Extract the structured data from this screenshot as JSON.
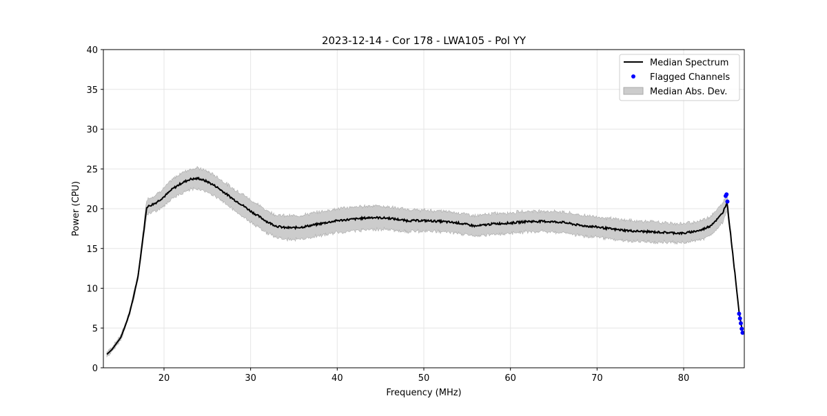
{
  "chart_data": {
    "type": "line",
    "title": "2023-12-14 - Cor 178 - LWA105 - Pol YY",
    "xlabel": "Frequency (MHz)",
    "ylabel": "Power (CPU)",
    "xlim": [
      13,
      87
    ],
    "ylim": [
      0,
      40
    ],
    "xticks": [
      20,
      30,
      40,
      50,
      60,
      70,
      80
    ],
    "yticks": [
      0,
      5,
      10,
      15,
      20,
      25,
      30,
      35,
      40
    ],
    "grid": true,
    "legend_position": "top-right",
    "legend": [
      "Median Spectrum",
      "Flagged Channels",
      "Median Abs. Dev."
    ],
    "colors": {
      "median": "#000000",
      "flagged": "#0000ff",
      "mad": "#cccccc",
      "mad_edge": "#aaaaaa"
    },
    "median_spectrum": {
      "x": [
        13.4,
        14,
        15,
        15.5,
        16,
        16.5,
        17,
        17.3,
        17.7,
        18,
        19,
        20,
        21,
        22,
        23,
        24,
        25,
        26,
        27,
        28,
        29,
        30,
        31,
        32,
        33,
        34,
        35,
        36,
        37,
        38,
        39,
        40,
        42,
        44,
        46,
        48,
        50,
        52,
        54,
        56,
        58,
        60,
        62,
        64,
        66,
        68,
        70,
        72,
        74,
        76,
        78,
        80,
        82,
        83,
        84,
        84.5,
        85,
        85.5,
        86,
        86.4,
        86.8
      ],
      "y": [
        1.7,
        2.3,
        3.8,
        5.2,
        6.8,
        9,
        11.5,
        14,
        17.5,
        20.2,
        20.7,
        21.5,
        22.5,
        23.2,
        23.7,
        23.8,
        23.4,
        22.8,
        22,
        21.2,
        20.5,
        19.7,
        19,
        18.3,
        17.8,
        17.6,
        17.6,
        17.7,
        17.9,
        18.1,
        18.3,
        18.5,
        18.7,
        18.9,
        18.8,
        18.5,
        18.5,
        18.4,
        18.2,
        17.8,
        18.1,
        18.2,
        18.4,
        18.4,
        18.3,
        17.9,
        17.7,
        17.4,
        17.2,
        17.1,
        17.0,
        16.9,
        17.3,
        17.8,
        18.8,
        19.5,
        20.8,
        16,
        11,
        7,
        4.4
      ],
      "mad": [
        0.3,
        0.3,
        0.3,
        0.3,
        0.3,
        0.4,
        0.4,
        0.5,
        0.8,
        1.0,
        1.0,
        1.1,
        1.2,
        1.3,
        1.3,
        1.3,
        1.3,
        1.3,
        1.3,
        1.3,
        1.4,
        1.4,
        1.4,
        1.4,
        1.4,
        1.5,
        1.5,
        1.5,
        1.5,
        1.5,
        1.5,
        1.5,
        1.5,
        1.5,
        1.4,
        1.4,
        1.3,
        1.3,
        1.3,
        1.3,
        1.3,
        1.3,
        1.3,
        1.3,
        1.3,
        1.3,
        1.3,
        1.3,
        1.3,
        1.3,
        1.2,
        1.2,
        1.2,
        1.2,
        1.2,
        1.2,
        1.0,
        0.3,
        0.2,
        0.2,
        0.2
      ]
    },
    "flagged_channels": {
      "x": [
        84.85,
        84.95,
        85.05,
        86.4,
        86.5,
        86.6,
        86.7,
        86.8
      ],
      "y": [
        21.6,
        21.8,
        20.9,
        6.8,
        6.2,
        5.6,
        4.9,
        4.4
      ]
    }
  }
}
